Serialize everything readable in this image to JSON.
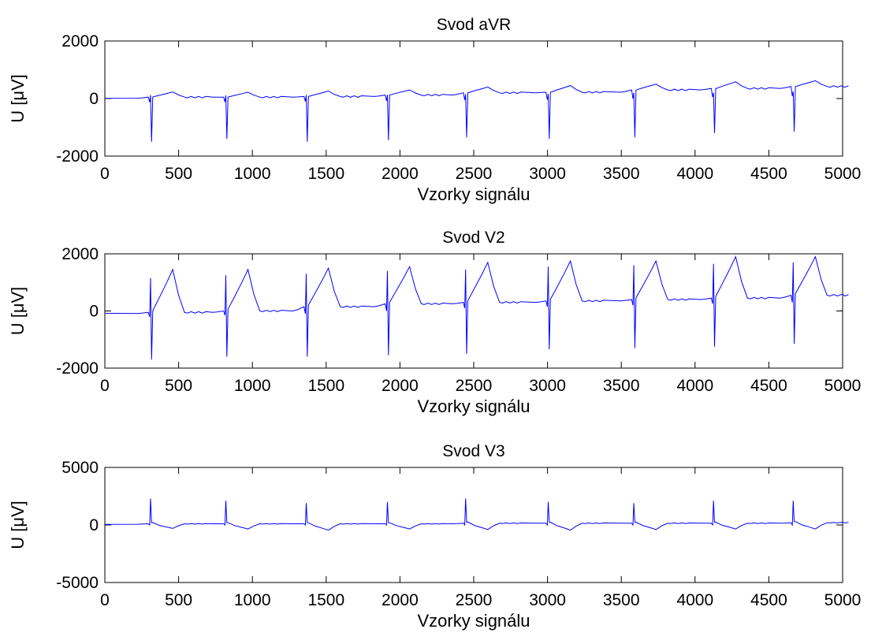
{
  "chart_data": [
    {
      "type": "line",
      "title": "Svod aVR",
      "xlabel": "Vzorky signálu",
      "ylabel": "U [μV]",
      "xlim": [
        0,
        5000
      ],
      "ylim": [
        -2000,
        2000
      ],
      "xticks": [
        "0",
        "500",
        "1000",
        "1500",
        "2000",
        "2500",
        "3000",
        "3500",
        "4000",
        "4500",
        "5000"
      ],
      "yticks": [
        "-2000",
        "0",
        "2000"
      ],
      "line_color": "#0000ff",
      "grid": false,
      "beats": [
        {
          "x": 310,
          "base": 50,
          "q": -130,
          "r": 120,
          "s": -1500,
          "t": 230
        },
        {
          "x": 820,
          "base": 50,
          "q": -120,
          "r": 110,
          "s": -1400,
          "t": 220
        },
        {
          "x": 1365,
          "base": 70,
          "q": -100,
          "r": 120,
          "s": -1500,
          "t": 260
        },
        {
          "x": 1915,
          "base": 120,
          "q": -80,
          "r": 130,
          "s": -1450,
          "t": 300
        },
        {
          "x": 2445,
          "base": 200,
          "q": -50,
          "r": 150,
          "s": -1350,
          "t": 400
        },
        {
          "x": 3005,
          "base": 220,
          "q": -40,
          "r": 160,
          "s": -1400,
          "t": 450
        },
        {
          "x": 3585,
          "base": 300,
          "q": 0,
          "r": 200,
          "s": -1350,
          "t": 500
        },
        {
          "x": 4125,
          "base": 350,
          "q": 50,
          "r": 200,
          "s": -1200,
          "t": 580
        },
        {
          "x": 4665,
          "base": 420,
          "q": 80,
          "r": 250,
          "s": -1150,
          "t": 620
        }
      ],
      "end_value": 420
    },
    {
      "type": "line",
      "title": "Svod V2",
      "xlabel": "Vzorky signálu",
      "ylabel": "U [μV]",
      "xlim": [
        0,
        5000
      ],
      "ylim": [
        -2000,
        2000
      ],
      "xticks": [
        "0",
        "500",
        "1000",
        "1500",
        "2000",
        "2500",
        "3000",
        "3500",
        "4000",
        "4500",
        "5000"
      ],
      "yticks": [
        "-2000",
        "0",
        "2000"
      ],
      "line_color": "#0000ff",
      "grid": false,
      "beats": [
        {
          "x": 310,
          "base": -50,
          "q": -200,
          "r": 1150,
          "s": -1700,
          "t": 1450
        },
        {
          "x": 820,
          "base": 0,
          "q": -150,
          "r": 1250,
          "s": -1600,
          "t": 1450
        },
        {
          "x": 1365,
          "base": 150,
          "q": -100,
          "r": 1300,
          "s": -1600,
          "t": 1500
        },
        {
          "x": 1915,
          "base": 250,
          "q": 0,
          "r": 1400,
          "s": -1550,
          "t": 1550
        },
        {
          "x": 2445,
          "base": 300,
          "q": 100,
          "r": 1450,
          "s": -1500,
          "t": 1700
        },
        {
          "x": 3005,
          "base": 350,
          "q": 150,
          "r": 1550,
          "s": -1350,
          "t": 1750
        },
        {
          "x": 3585,
          "base": 400,
          "q": 200,
          "r": 1600,
          "s": -1300,
          "t": 1750
        },
        {
          "x": 4125,
          "base": 450,
          "q": 250,
          "r": 1650,
          "s": -1250,
          "t": 1900
        },
        {
          "x": 4665,
          "base": 550,
          "q": 300,
          "r": 1700,
          "s": -1150,
          "t": 1900
        }
      ],
      "end_value": 580
    },
    {
      "type": "line",
      "title": "Svod V3",
      "xlabel": "Vzorky signálu",
      "ylabel": "U [μV]",
      "xlim": [
        0,
        5000
      ],
      "ylim": [
        -5000,
        5000
      ],
      "xticks": [
        "0",
        "500",
        "1000",
        "1500",
        "2000",
        "2500",
        "3000",
        "3500",
        "4000",
        "4500",
        "5000"
      ],
      "yticks": [
        "-5000",
        "0",
        "5000"
      ],
      "line_color": "#0000ff",
      "grid": false,
      "beats": [
        {
          "x": 310,
          "base": 100,
          "q": 0,
          "r": 2300,
          "s": 200,
          "t": -300
        },
        {
          "x": 820,
          "base": 100,
          "q": 0,
          "r": 2100,
          "s": 200,
          "t": -350
        },
        {
          "x": 1365,
          "base": 100,
          "q": 0,
          "r": 1900,
          "s": 200,
          "t": -450
        },
        {
          "x": 1915,
          "base": 100,
          "q": 0,
          "r": 2000,
          "s": 200,
          "t": -350
        },
        {
          "x": 2445,
          "base": 150,
          "q": 0,
          "r": 2300,
          "s": 250,
          "t": -400
        },
        {
          "x": 3005,
          "base": 150,
          "q": 0,
          "r": 2000,
          "s": 250,
          "t": -450
        },
        {
          "x": 3585,
          "base": 150,
          "q": 0,
          "r": 1900,
          "s": 250,
          "t": -400
        },
        {
          "x": 4125,
          "base": 150,
          "q": 0,
          "r": 2100,
          "s": 250,
          "t": -350
        },
        {
          "x": 4665,
          "base": 200,
          "q": 0,
          "r": 2100,
          "s": 300,
          "t": -350
        }
      ],
      "end_value": 250
    }
  ]
}
